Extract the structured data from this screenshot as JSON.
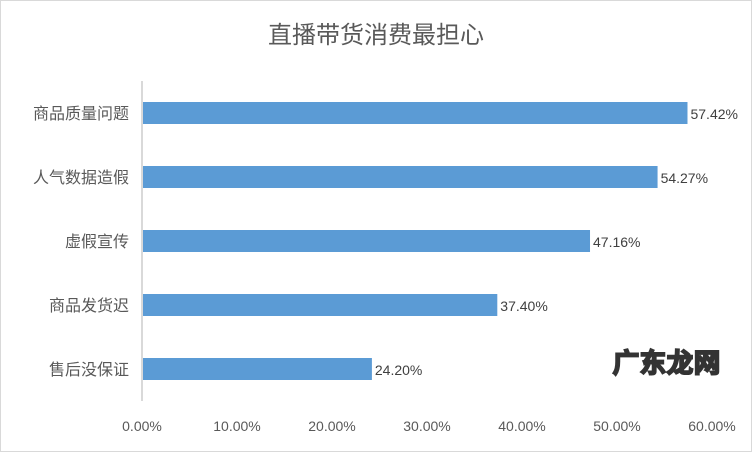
{
  "chart_data": {
    "type": "bar",
    "orientation": "horizontal",
    "title": "直播带货消费最担心",
    "categories": [
      "商品质量问题",
      "人气数据造假",
      "虚假宣传",
      "商品发货迟",
      "售后没保证"
    ],
    "values": [
      57.42,
      54.27,
      47.16,
      37.4,
      24.2
    ],
    "data_labels": [
      "57.42%",
      "54.27%",
      "47.16%",
      "37.40%",
      "24.20%"
    ],
    "xlim": [
      0,
      60
    ],
    "xticks": [
      "0.00%",
      "10.00%",
      "20.00%",
      "30.00%",
      "40.00%",
      "50.00%",
      "60.00%"
    ],
    "grid": false,
    "bar_color": "#5b9bd5"
  },
  "watermark": "广东龙网"
}
